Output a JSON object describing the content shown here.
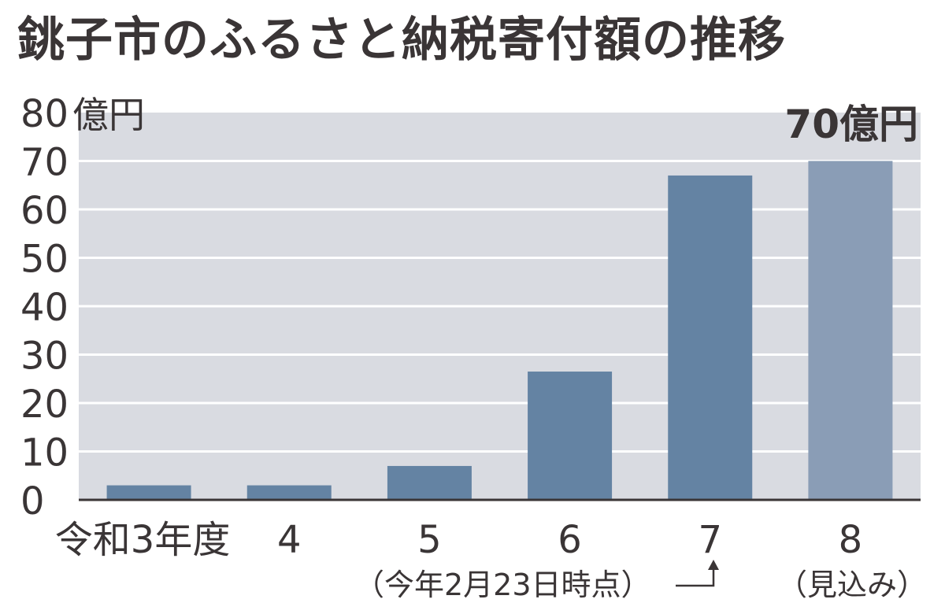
{
  "title": "銚子市のふるさと納税寄付額の推移",
  "colors": {
    "plot_bg": "#d9dbe1",
    "grid": "#ffffff",
    "bar": "#6483a3",
    "bar_projected": "#8a9db6",
    "axis": "#3a3536"
  },
  "chart_data": {
    "type": "bar",
    "title": "銚子市のふるさと納税寄付額の推移",
    "ylabel": "億円",
    "ylim": [
      0,
      80
    ],
    "yticks": [
      0,
      10,
      20,
      30,
      40,
      50,
      60,
      70,
      80
    ],
    "ytick_labels": [
      "0",
      "10",
      "20",
      "30",
      "40",
      "50",
      "60",
      "70",
      "80"
    ],
    "unit_label": "億円",
    "categories": [
      "令和3年度",
      "4",
      "5",
      "6",
      "7",
      "8"
    ],
    "values": [
      3,
      3,
      7,
      26.5,
      67,
      70
    ],
    "projected": [
      false,
      false,
      false,
      false,
      false,
      true
    ],
    "annotations": {
      "bar_label": "70億円",
      "category7_note": "（今年2月23日時点）",
      "category8_note": "（見込み）"
    },
    "grid": true,
    "legend": "none"
  }
}
